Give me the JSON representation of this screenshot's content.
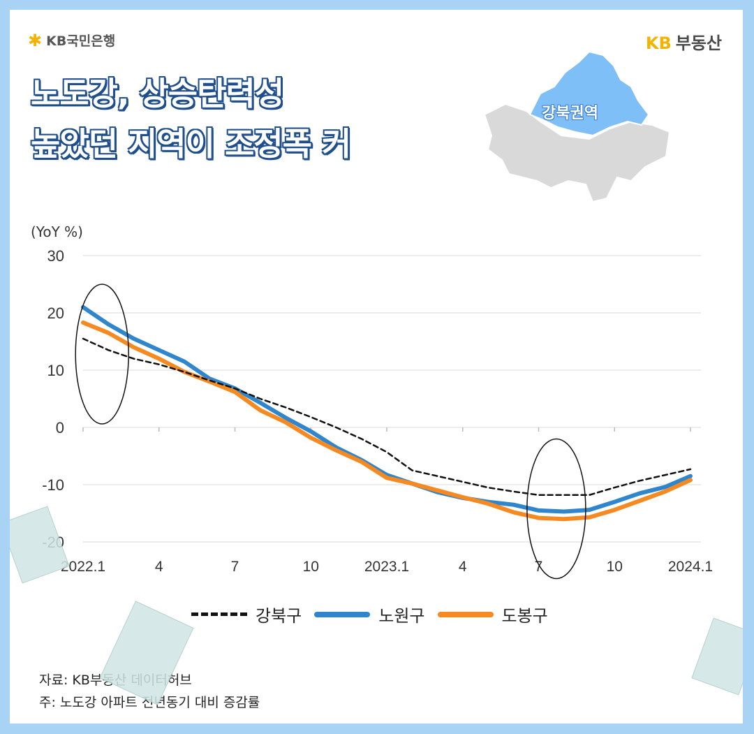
{
  "brand": {
    "bank": "KB국민은행",
    "realestate_kb": "KB",
    "realestate_name": "부동산"
  },
  "headline": {
    "line1": "노도강, 상승탄력성",
    "line2": "높았던 지역이 조정폭 커"
  },
  "map": {
    "label": "강북권역",
    "highlight_color": "#7fbff8",
    "base_color": "#d9d9d9"
  },
  "chart_data": {
    "type": "line",
    "title": "",
    "ylabel": "(YoY %)",
    "ylim": [
      -20,
      30
    ],
    "yticks": [
      30,
      20,
      10,
      0,
      -10,
      -20
    ],
    "x": [
      "2022.1",
      "2022.2",
      "2022.3",
      "2022.4",
      "2022.5",
      "2022.6",
      "2022.7",
      "2022.8",
      "2022.9",
      "2022.10",
      "2022.11",
      "2022.12",
      "2023.1",
      "2023.2",
      "2023.3",
      "2023.4",
      "2023.5",
      "2023.6",
      "2023.7",
      "2023.8",
      "2023.9",
      "2023.10",
      "2023.11",
      "2023.12",
      "2024.1"
    ],
    "xtick_labels": [
      {
        "label": "2022.1",
        "index": 0
      },
      {
        "label": "4",
        "index": 3
      },
      {
        "label": "7",
        "index": 6
      },
      {
        "label": "10",
        "index": 9
      },
      {
        "label": "2023.1",
        "index": 12
      },
      {
        "label": "4",
        "index": 15
      },
      {
        "label": "7",
        "index": 18
      },
      {
        "label": "10",
        "index": 21
      },
      {
        "label": "2024.1",
        "index": 24
      }
    ],
    "series": [
      {
        "name": "강북구",
        "style": "dashed",
        "color": "#111111",
        "values": [
          15.5,
          13.5,
          12,
          11,
          9.7,
          8.2,
          6.8,
          5,
          3.5,
          1.8,
          0,
          -2,
          -4.3,
          -7.5,
          -8.5,
          -9.5,
          -10.5,
          -11.2,
          -11.8,
          -11.8,
          -11.8,
          -10.5,
          -9.3,
          -8.3,
          -7.3
        ]
      },
      {
        "name": "노원구",
        "style": "solid",
        "color": "#2f86cc",
        "values": [
          21,
          18,
          15.5,
          13.5,
          11.5,
          8.5,
          6.8,
          4.3,
          1.7,
          -0.7,
          -3.5,
          -5.7,
          -8.3,
          -9.8,
          -11.3,
          -12.3,
          -13,
          -13.5,
          -14.5,
          -14.7,
          -14.4,
          -13,
          -11.5,
          -10.4,
          -8.5
        ]
      },
      {
        "name": "도봉구",
        "style": "solid",
        "color": "#f6891f",
        "values": [
          18.3,
          16.5,
          14,
          12,
          9.7,
          8,
          6.2,
          3,
          0.9,
          -1.8,
          -4,
          -6,
          -8.8,
          -9.8,
          -11,
          -12.2,
          -13.3,
          -14.8,
          -15.8,
          -16,
          -15.7,
          -14.4,
          -12.8,
          -11.2,
          -9.2
        ]
      }
    ],
    "annotations": [
      "ellipse around 2022.1-2022.2 start",
      "ellipse around 2023.7-2023.8 trough"
    ],
    "legend_position": "bottom-center"
  },
  "source": {
    "line1": "자료: KB부동산 데이터허브",
    "line2": "주: 노도강 아파트 전년동기 대비 증감률"
  }
}
